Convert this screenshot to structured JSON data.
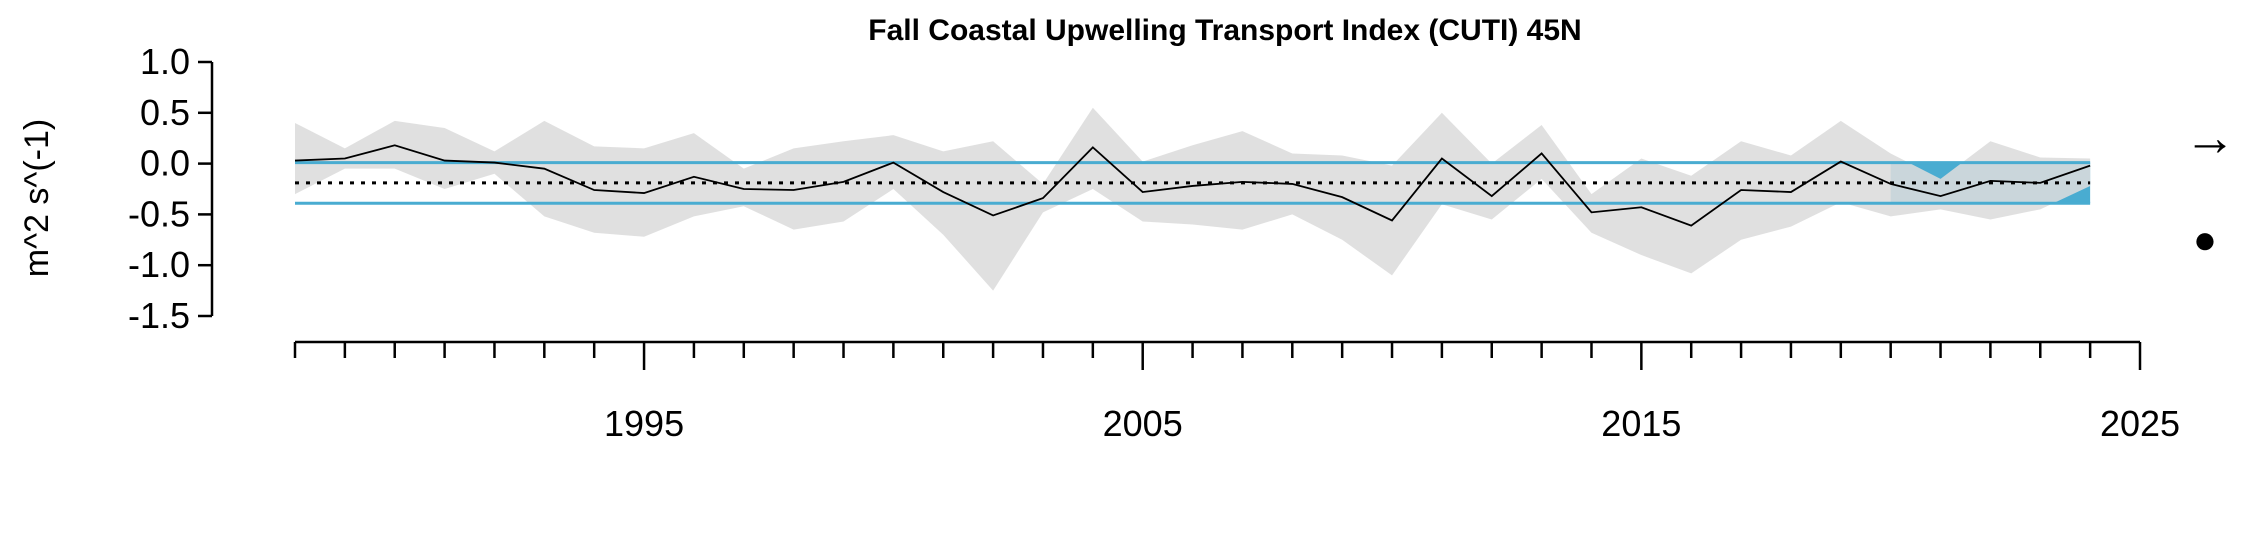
{
  "chart_data": {
    "type": "line",
    "title": "Fall Coastal Upwelling Transport Index (CUTI) 45N",
    "ylabel": "m^2 s^(-1)",
    "xlabel": "",
    "xlim": [
      1988,
      2025
    ],
    "ylim": [
      -1.5,
      1.0
    ],
    "x_tick_labels": [
      "1995",
      "2005",
      "2015",
      "2025"
    ],
    "y_tick_labels": [
      "1.0",
      "0.5",
      "0.0",
      "-0.5",
      "-1.0",
      "-1.5"
    ],
    "x": [
      1988,
      1989,
      1990,
      1991,
      1992,
      1993,
      1994,
      1995,
      1996,
      1997,
      1998,
      1999,
      2000,
      2001,
      2002,
      2003,
      2004,
      2005,
      2006,
      2007,
      2008,
      2009,
      2010,
      2011,
      2012,
      2013,
      2014,
      2015,
      2016,
      2017,
      2018,
      2019,
      2020,
      2021,
      2022,
      2023,
      2024
    ],
    "series": [
      {
        "values": [
          0.03,
          0.05,
          0.18,
          0.03,
          0.01,
          -0.05,
          -0.26,
          -0.29,
          -0.13,
          -0.25,
          -0.26,
          -0.18,
          0.01,
          -0.28,
          -0.51,
          -0.34,
          0.16,
          -0.28,
          -0.22,
          -0.18,
          -0.2,
          -0.33,
          -0.56,
          0.05,
          -0.32,
          0.1,
          -0.48,
          -0.43,
          -0.61,
          -0.26,
          -0.28,
          0.02,
          -0.2,
          -0.32,
          -0.17,
          -0.19,
          -0.02
        ],
        "upper": [
          0.4,
          0.15,
          0.42,
          0.35,
          0.12,
          0.42,
          0.17,
          0.15,
          0.3,
          -0.05,
          0.15,
          0.22,
          0.28,
          0.12,
          0.22,
          -0.2,
          0.55,
          0.02,
          0.18,
          0.32,
          0.1,
          0.08,
          -0.02,
          0.5,
          0.0,
          0.38,
          -0.3,
          0.05,
          -0.12,
          0.22,
          0.08,
          0.42,
          0.1,
          -0.15,
          0.22,
          0.06,
          0.05
        ],
        "lower": [
          -0.3,
          -0.05,
          -0.05,
          -0.25,
          -0.1,
          -0.52,
          -0.68,
          -0.72,
          -0.52,
          -0.42,
          -0.65,
          -0.57,
          -0.25,
          -0.7,
          -1.25,
          -0.48,
          -0.25,
          -0.57,
          -0.6,
          -0.65,
          -0.5,
          -0.75,
          -1.1,
          -0.4,
          -0.55,
          -0.15,
          -0.68,
          -0.9,
          -1.08,
          -0.75,
          -0.62,
          -0.38,
          -0.52,
          -0.45,
          -0.55,
          -0.45,
          -0.22
        ]
      }
    ],
    "long_term_mean": -0.19,
    "mean_plus_sd": 0.01,
    "mean_minus_sd": -0.39,
    "recent_mean": -0.19,
    "recent_window": [
      2020,
      2024
    ],
    "trend_symbol": "→",
    "mean_symbol": "●",
    "colors": {
      "envelope": "#dcdcdc",
      "line": "#000000",
      "sd_lines": "#49acd1",
      "recent_box": "#49acd1",
      "mean_dashed": "#9a9a9a"
    }
  }
}
